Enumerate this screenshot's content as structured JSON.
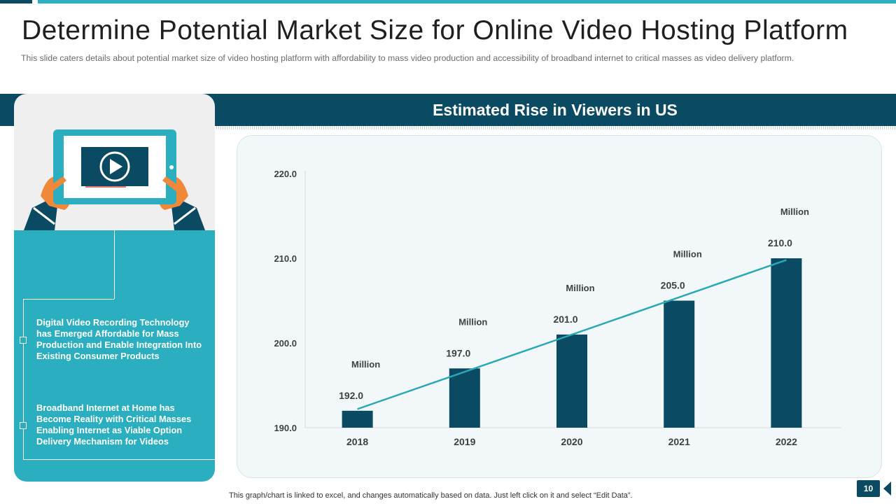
{
  "slide": {
    "title": "Determine Potential Market Size for Online Video Hosting Platform",
    "subtitle": "This slide caters details about potential market size of video  hosting platform  with affordability  to mass video  production  and accessibility of broadband  internet to critical masses as video  delivery  platform.",
    "footer_note": "This graph/chart is linked to excel,  and changes automatically based on data. Just left click on it and select “Edit Data”.",
    "page_number": "10"
  },
  "left_panel": {
    "bullets": [
      "Digital Video Recording Technology has Emerged Affordable for Mass Production and Enable Integration Into Existing Consumer  Products",
      "Broadband Internet at Home has Become Reality with Critical Masses Enabling Internet as Viable Option Delivery Mechanism for Videos"
    ],
    "illustration_icons": [
      "tablet-icon",
      "play-icon",
      "hands-icon"
    ]
  },
  "colors": {
    "dark_blue": "#0b4a63",
    "teal": "#2aaec0",
    "trend_line": "#2aa8b8",
    "orange": "#f0883a"
  },
  "chart_data": {
    "type": "bar",
    "title": "Estimated Rise in Viewers in US",
    "categories": [
      "2018",
      "2019",
      "2020",
      "2021",
      "2022"
    ],
    "series": [
      {
        "values": [
          192.0,
          197.0,
          201.0,
          205.0,
          210.0
        ]
      }
    ],
    "data_labels": [
      "192.0",
      "197.0",
      "201.0",
      "205.0",
      "210.0"
    ],
    "unit_label": "Million",
    "trendline": "linear",
    "ylim": [
      190,
      220
    ],
    "yticks": [
      "190.0",
      "200.0",
      "210.0",
      "220.0"
    ],
    "xlabel": "",
    "ylabel": "",
    "grid": false,
    "legend": "none"
  }
}
